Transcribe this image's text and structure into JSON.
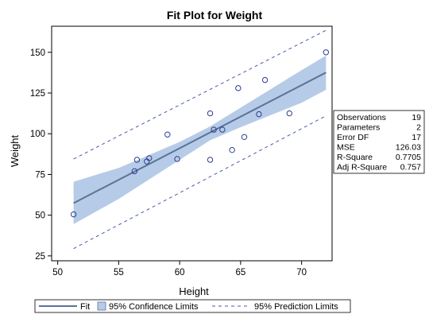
{
  "chart_data": {
    "type": "scatter",
    "title": "Fit Plot for Weight",
    "xlabel": "Height",
    "ylabel": "Weight",
    "xlim": [
      49.5,
      72.5
    ],
    "ylim": [
      22,
      166
    ],
    "xticks": [
      50,
      55,
      60,
      65,
      70
    ],
    "yticks": [
      25,
      50,
      75,
      100,
      125,
      150
    ],
    "grid": false,
    "points": [
      {
        "x": 51.3,
        "y": 50.5
      },
      {
        "x": 56.3,
        "y": 77
      },
      {
        "x": 56.5,
        "y": 84
      },
      {
        "x": 57.3,
        "y": 83
      },
      {
        "x": 57.5,
        "y": 85
      },
      {
        "x": 59.0,
        "y": 99.5
      },
      {
        "x": 59.8,
        "y": 84.5
      },
      {
        "x": 62.5,
        "y": 112.5
      },
      {
        "x": 62.5,
        "y": 84
      },
      {
        "x": 62.8,
        "y": 102.5
      },
      {
        "x": 63.5,
        "y": 102.5
      },
      {
        "x": 64.3,
        "y": 90
      },
      {
        "x": 64.8,
        "y": 128
      },
      {
        "x": 65.3,
        "y": 98
      },
      {
        "x": 66.5,
        "y": 112
      },
      {
        "x": 67.0,
        "y": 133
      },
      {
        "x": 69.0,
        "y": 112.5
      },
      {
        "x": 72.0,
        "y": 150
      }
    ],
    "fit": {
      "x": [
        51.3,
        72.0
      ],
      "y": [
        57.4,
        137.6
      ]
    },
    "confidence": {
      "x": [
        51.3,
        55,
        60,
        62.5,
        65,
        70,
        72
      ],
      "lower": [
        44.5,
        60,
        84,
        96,
        104,
        119,
        127
      ],
      "upper": [
        70.5,
        79,
        95,
        104.5,
        116,
        139,
        148
      ]
    },
    "prediction": {
      "x": [
        51.3,
        72
      ],
      "lower": [
        29.5,
        111
      ],
      "upper": [
        84.5,
        163.5
      ]
    },
    "legend": {
      "position": "bottom",
      "items": [
        {
          "label": "Fit",
          "kind": "line"
        },
        {
          "label": "95% Confidence Limits",
          "kind": "band"
        },
        {
          "label": "95% Prediction Limits",
          "kind": "dashed"
        }
      ]
    },
    "stats": {
      "position": "right",
      "rows": [
        {
          "label": "Observations",
          "value": "19"
        },
        {
          "label": "Parameters",
          "value": "2"
        },
        {
          "label": "Error DF",
          "value": "17"
        },
        {
          "label": "MSE",
          "value": "126.03"
        },
        {
          "label": "R-Square",
          "value": "0.7705"
        },
        {
          "label": "Adj R-Square",
          "value": "0.757"
        }
      ]
    },
    "colors": {
      "fit": "#5a7396",
      "band": "#b6cbe7",
      "prediction": "#4a5aa8",
      "marker": "#2d3d8c"
    }
  }
}
